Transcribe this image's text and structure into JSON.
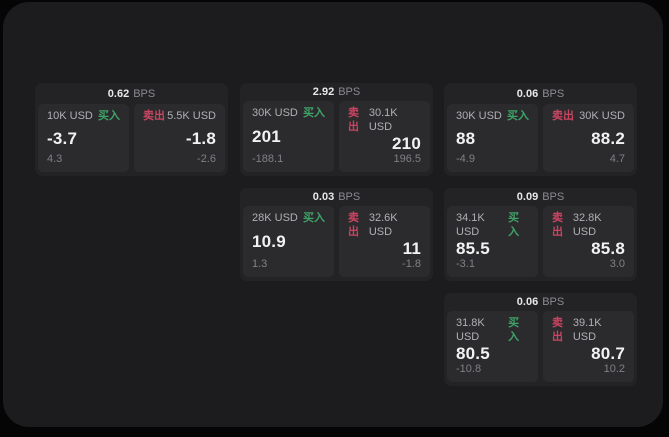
{
  "labels": {
    "bps_unit": "BPS",
    "buy": "买入",
    "sell": "卖出"
  },
  "colors": {
    "background": "#050505",
    "window": "#1c1c1e",
    "card": "#232325",
    "panel": "#2b2b2d",
    "buy_green": "#3fa368",
    "sell_red": "#c94562"
  },
  "cards": [
    {
      "bps": "0.62",
      "buy": {
        "size": "10K USD",
        "price": "-3.7",
        "sub": "4.3"
      },
      "sell": {
        "size": "5.5K USD",
        "price": "-1.8",
        "sub": "-2.6"
      }
    },
    {
      "bps": "2.92",
      "buy": {
        "size": "30K USD",
        "price": "201",
        "sub": "-188.1"
      },
      "sell": {
        "size": "30.1K USD",
        "price": "210",
        "sub": "196.5"
      }
    },
    {
      "bps": "0.06",
      "buy": {
        "size": "30K USD",
        "price": "88",
        "sub": "-4.9"
      },
      "sell": {
        "size": "30K USD",
        "price": "88.2",
        "sub": "4.7"
      }
    },
    {
      "bps": "0.03",
      "buy": {
        "size": "28K USD",
        "price": "10.9",
        "sub": "1.3"
      },
      "sell": {
        "size": "32.6K USD",
        "price": "11",
        "sub": "-1.8"
      }
    },
    {
      "bps": "0.09",
      "buy": {
        "size": "34.1K USD",
        "price": "85.5",
        "sub": "-3.1"
      },
      "sell": {
        "size": "32.8K USD",
        "price": "85.8",
        "sub": "3.0"
      }
    },
    {
      "bps": "0.06",
      "buy": {
        "size": "31.8K USD",
        "price": "80.5",
        "sub": "-10.8"
      },
      "sell": {
        "size": "39.1K USD",
        "price": "80.7",
        "sub": "10.2"
      }
    }
  ]
}
